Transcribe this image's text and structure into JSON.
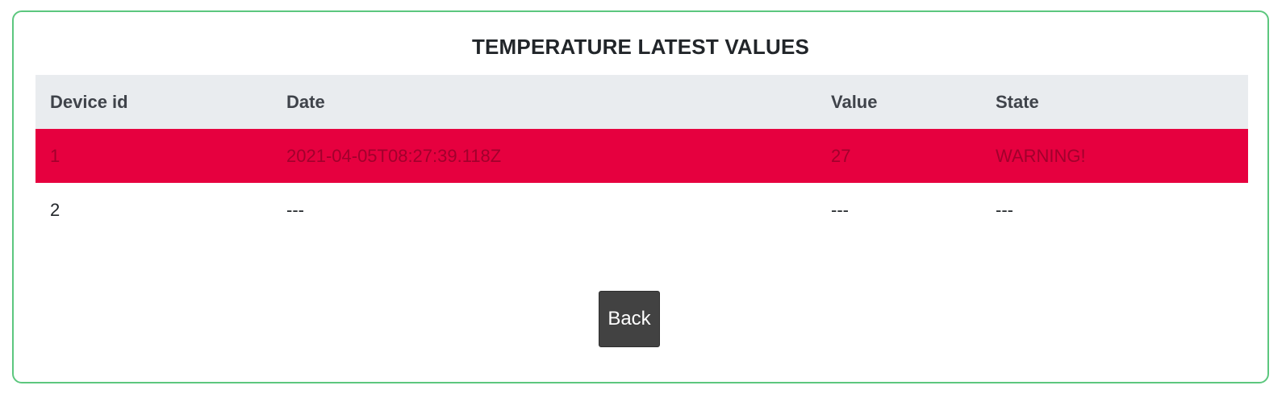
{
  "title": "TEMPERATURE LATEST VALUES",
  "table": {
    "headers": [
      "Device id",
      "Date",
      "Value",
      "State"
    ],
    "rows": [
      {
        "device_id": "1",
        "date": "2021-04-05T08:27:39.118Z",
        "value": "27",
        "state": "WARNING!"
      },
      {
        "device_id": "2",
        "date": "---",
        "value": "---",
        "state": "---"
      }
    ]
  },
  "back_label": "Back",
  "colors": {
    "card_border": "#5cc77e",
    "header_background": "#e9ecef",
    "warning_row": "#e6003f",
    "button_background": "#424242"
  }
}
